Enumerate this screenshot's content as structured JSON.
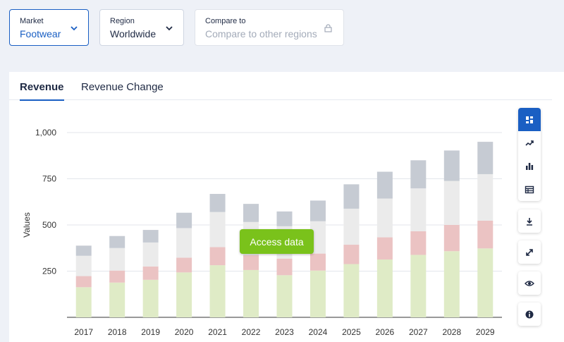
{
  "filters": {
    "market": {
      "label": "Market",
      "value": "Footwear"
    },
    "region": {
      "label": "Region",
      "value": "Worldwide"
    },
    "compare": {
      "label": "Compare to",
      "placeholder": "Compare to other regions"
    }
  },
  "tabs": [
    "Revenue",
    "Revenue Change"
  ],
  "access_button": "Access data",
  "colors": {
    "accent": "#1a5fc3",
    "access": "#7ac21b",
    "series": [
      "#dfebc6",
      "#ebc3c3",
      "#ebebeb",
      "#c6cbd3"
    ]
  },
  "chart_data": {
    "type": "bar",
    "stacked": true,
    "ylabel": "Values",
    "xlabel": "",
    "ylim": [
      0,
      1000
    ],
    "yticks": [
      250,
      500,
      750,
      1000
    ],
    "ytick_labels": [
      "250",
      "500",
      "750",
      "1,000"
    ],
    "grid": true,
    "categories": [
      "2017",
      "2018",
      "2019",
      "2020",
      "2021",
      "2022",
      "2023",
      "2024",
      "2025",
      "2026",
      "2027",
      "2028",
      "2029"
    ],
    "series": [
      {
        "values": [
          163,
          188,
          203,
          243,
          282,
          256,
          228,
          253,
          288,
          313,
          338,
          358,
          373
        ]
      },
      {
        "values": [
          60,
          65,
          72,
          80,
          98,
          80,
          90,
          92,
          105,
          120,
          128,
          142,
          150
        ]
      },
      {
        "values": [
          110,
          122,
          130,
          160,
          190,
          180,
          175,
          175,
          195,
          210,
          232,
          238,
          252
        ]
      },
      {
        "values": [
          55,
          65,
          68,
          83,
          98,
          98,
          80,
          112,
          132,
          145,
          152,
          165,
          175
        ]
      }
    ]
  },
  "sidebar_icons": [
    "dashboard-icon",
    "line-chart-icon",
    "bar-chart-icon",
    "table-icon",
    "download-icon",
    "fullscreen-icon",
    "eye-icon",
    "info-icon"
  ]
}
